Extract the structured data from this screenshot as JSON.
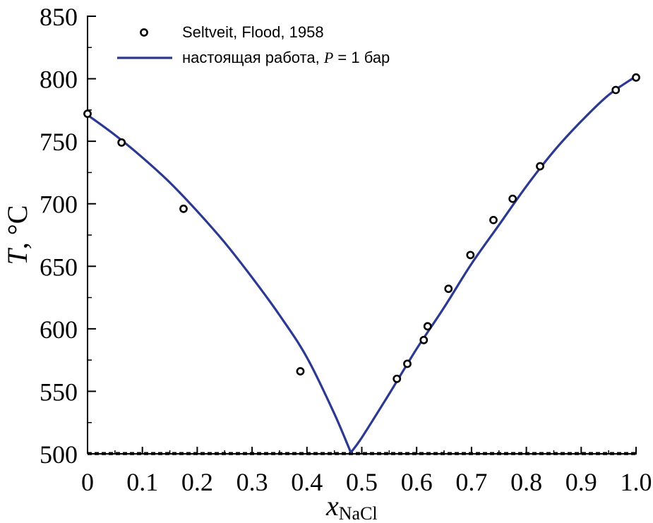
{
  "chart_data": {
    "type": "line",
    "xlabel": "x",
    "xlabel_subscript": "NaCl",
    "ylabel": "T, °C",
    "xlim": [
      0,
      1.0
    ],
    "ylim": [
      500,
      850
    ],
    "x_ticks": [
      0,
      0.1,
      0.2,
      0.3,
      0.4,
      0.5,
      0.6,
      0.7,
      0.8,
      0.9,
      1.0
    ],
    "x_tick_labels": [
      "0",
      "0.1",
      "0.2",
      "0.3",
      "0.4",
      "0.5",
      "0.6",
      "0.7",
      "0.8",
      "0.9",
      "1.0"
    ],
    "y_ticks": [
      500,
      550,
      600,
      650,
      700,
      750,
      800,
      850
    ],
    "y_tick_labels": [
      "500",
      "550",
      "600",
      "650",
      "700",
      "750",
      "800",
      "850"
    ],
    "grid": false,
    "legend_position": "top-left",
    "series": [
      {
        "name": "Seltveit, Flood, 1958",
        "kind": "scatter",
        "marker": "open-circle",
        "color": "#000000",
        "x": [
          0.0,
          0.062,
          0.175,
          0.388,
          0.564,
          0.583,
          0.613,
          0.62,
          0.658,
          0.698,
          0.74,
          0.775,
          0.825,
          0.963,
          1.0
        ],
        "y": [
          772,
          749,
          696,
          566,
          560,
          572,
          591,
          602,
          632,
          659,
          687,
          704,
          730,
          791,
          801
        ]
      },
      {
        "name_prefix": "настоящая работа, ",
        "name_italic": "P",
        "name_suffix": " = 1 бар",
        "kind": "line",
        "color": "#2b3990",
        "x": [
          0.0,
          0.05,
          0.1,
          0.15,
          0.2,
          0.25,
          0.3,
          0.35,
          0.4,
          0.45,
          0.48,
          0.5,
          0.55,
          0.6,
          0.65,
          0.7,
          0.75,
          0.8,
          0.85,
          0.9,
          0.95,
          1.0
        ],
        "y": [
          771,
          755,
          737,
          717,
          694,
          669,
          641,
          611,
          577,
          532,
          501,
          513,
          548,
          584,
          617,
          652,
          683,
          714,
          742,
          766,
          787,
          802
        ]
      }
    ],
    "eutectic_line": {
      "y": 501,
      "style": "dashed",
      "color": "#000000"
    }
  }
}
